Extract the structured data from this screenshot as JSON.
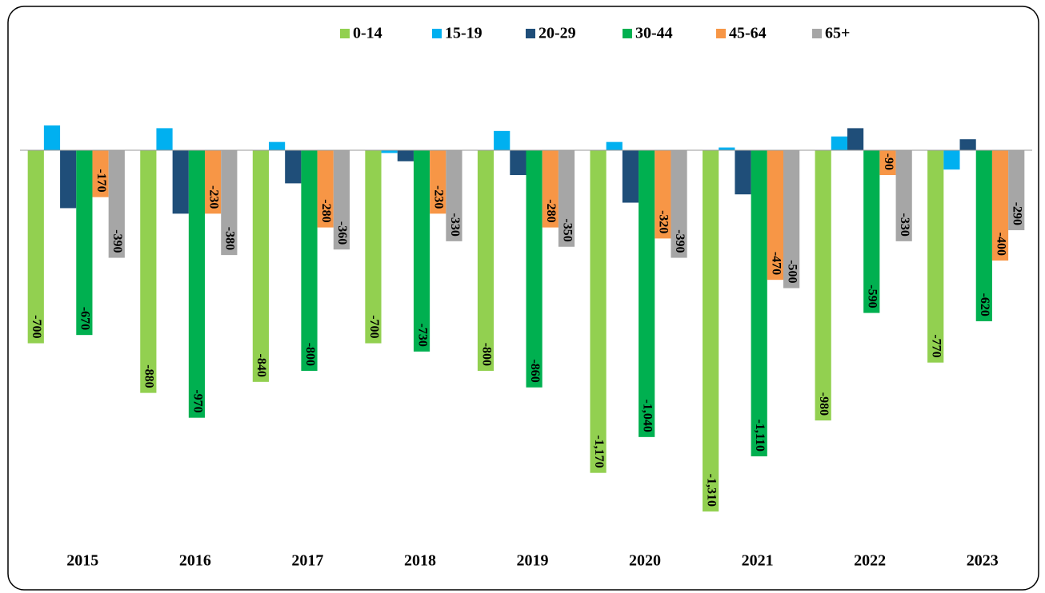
{
  "chart_data": {
    "type": "bar",
    "categories": [
      "2015",
      "2016",
      "2017",
      "2018",
      "2019",
      "2020",
      "2021",
      "2022",
      "2023"
    ],
    "series": [
      {
        "name": "0-14",
        "color": "#92d050",
        "values": [
          -700,
          -880,
          -840,
          -700,
          -800,
          -1170,
          -1310,
          -980,
          -770
        ],
        "value_labels": [
          "-700",
          "-880",
          "-840",
          "-700",
          "-800",
          "-1,170",
          "-1,310",
          "-980",
          "-770"
        ]
      },
      {
        "name": "15-19",
        "color": "#00b0f0",
        "values": [
          90,
          80,
          30,
          -10,
          70,
          30,
          10,
          50,
          -70
        ]
      },
      {
        "name": "20-29",
        "color": "#1f4e79",
        "values": [
          -210,
          -230,
          -120,
          -40,
          -90,
          -190,
          -160,
          80,
          40
        ]
      },
      {
        "name": "30-44",
        "color": "#00b050",
        "values": [
          -670,
          -970,
          -800,
          -730,
          -860,
          -1040,
          -1110,
          -590,
          -620
        ],
        "value_labels": [
          "-670",
          "-970",
          "-800",
          "-730",
          "-860",
          "-1,040",
          "-1,110",
          "-590",
          "-620"
        ]
      },
      {
        "name": "45-64",
        "color": "#f79646",
        "values": [
          -170,
          -230,
          -280,
          -230,
          -280,
          -320,
          -470,
          -90,
          -400
        ],
        "value_labels": [
          "-170",
          "-230",
          "-280",
          "-230",
          "-280",
          "-320",
          "-470",
          "-90",
          "-400"
        ]
      },
      {
        "name": "65+",
        "color": "#a6a6a6",
        "values": [
          -390,
          -380,
          -360,
          -330,
          -350,
          -390,
          -500,
          -330,
          -290
        ],
        "value_labels": [
          "-390",
          "-380",
          "-360",
          "-330",
          "-350",
          "-390",
          "-500",
          "-330",
          "-290"
        ]
      }
    ]
  }
}
